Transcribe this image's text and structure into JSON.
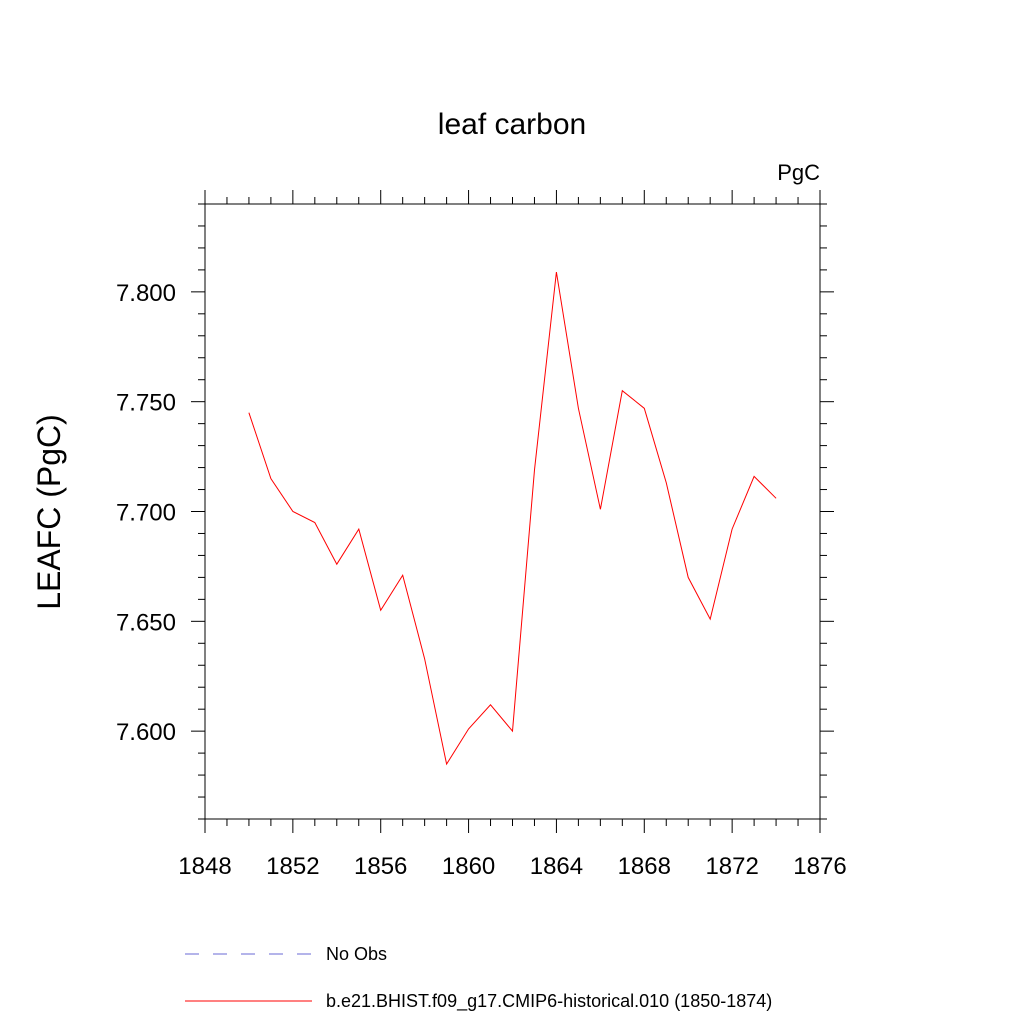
{
  "chart_data": {
    "type": "line",
    "title": "leaf carbon",
    "units_label": "PgC",
    "ylabel": "LEAFC  (PgC)",
    "xlabel": "",
    "xlim": [
      1848,
      1876
    ],
    "ylim": [
      7.56,
      7.84
    ],
    "x_ticks": [
      1848,
      1852,
      1856,
      1860,
      1864,
      1868,
      1872,
      1876
    ],
    "x_tick_labels": [
      "1848",
      "1852",
      "1856",
      "1860",
      "1864",
      "1868",
      "1872",
      "1876"
    ],
    "x_minor_step": 1,
    "y_ticks": [
      7.6,
      7.65,
      7.7,
      7.75,
      7.8
    ],
    "y_tick_labels": [
      "7.600",
      "7.650",
      "7.700",
      "7.750",
      "7.800"
    ],
    "y_minor_step": 0.01,
    "grid": false,
    "legend_position": "bottom",
    "series": [
      {
        "name": "No Obs",
        "color": "#6a6ad6",
        "dashed": true,
        "x": [],
        "values": []
      },
      {
        "name": "b.e21.BHIST.f09_g17.CMIP6-historical.010 (1850-1874)",
        "color": "#ff0000",
        "dashed": false,
        "x": [
          1850,
          1851,
          1852,
          1853,
          1854,
          1855,
          1856,
          1857,
          1858,
          1859,
          1860,
          1861,
          1862,
          1863,
          1864,
          1865,
          1866,
          1867,
          1868,
          1869,
          1870,
          1871,
          1872,
          1873,
          1874
        ],
        "values": [
          7.745,
          7.715,
          7.7,
          7.695,
          7.676,
          7.692,
          7.655,
          7.671,
          7.633,
          7.585,
          7.601,
          7.612,
          7.6,
          7.719,
          7.809,
          7.747,
          7.701,
          7.755,
          7.747,
          7.713,
          7.67,
          7.651,
          7.692,
          7.716,
          7.706
        ]
      }
    ]
  }
}
